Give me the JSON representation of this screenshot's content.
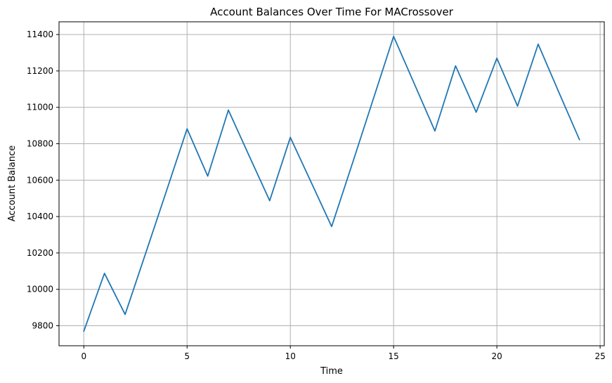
{
  "chart_data": {
    "type": "line",
    "title": "Account Balances Over Time For MACrossover",
    "xlabel": "Time",
    "ylabel": "Account Balance",
    "xlim": [
      -1.2,
      25.2
    ],
    "ylim": [
      9690,
      11470
    ],
    "xticks": [
      0,
      5,
      10,
      15,
      20,
      25
    ],
    "yticks": [
      9800,
      10000,
      10200,
      10400,
      10600,
      10800,
      11000,
      11200,
      11400
    ],
    "grid": true,
    "series": [
      {
        "color": "#1f77b4",
        "x": [
          0,
          1,
          2,
          3,
          4,
          5,
          6,
          7,
          8,
          9,
          10,
          11,
          12,
          13,
          14,
          15,
          16,
          17,
          18,
          19,
          20,
          21,
          22,
          23,
          24
        ],
        "y": [
          9770,
          10088,
          9862,
          10200,
          10540,
          10882,
          10622,
          10985,
          10735,
          10487,
          10835,
          10590,
          10345,
          10690,
          11040,
          11390,
          11130,
          10870,
          11228,
          10973,
          11270,
          11007,
          11347,
          11083,
          10822
        ]
      }
    ]
  }
}
